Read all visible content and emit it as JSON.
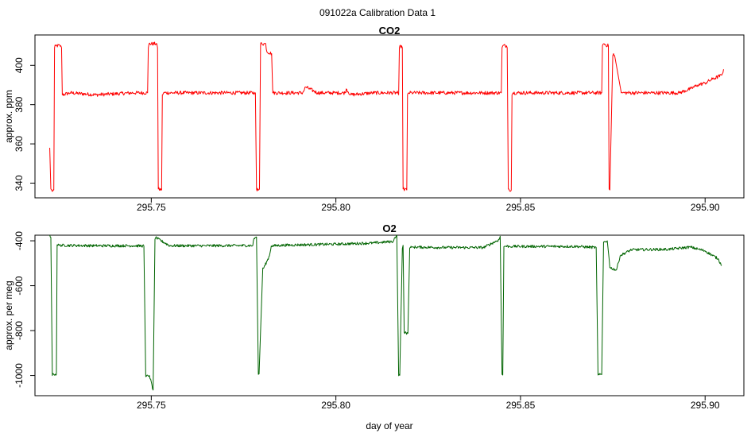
{
  "figure": {
    "title": "091022a   Calibration Data 1"
  },
  "chart_data": [
    {
      "type": "line",
      "title": "CO2",
      "xlabel": "",
      "ylabel": "approx. ppm",
      "xlim": [
        295.7185,
        295.9105
      ],
      "ylim": [
        332.5,
        415.5
      ],
      "xticks": [
        295.75,
        295.8,
        295.85,
        295.9
      ],
      "xtick_labels": [
        "295.75",
        "295.80",
        "295.85",
        "295.90"
      ],
      "yticks": [
        340,
        360,
        380,
        400
      ],
      "ytick_labels": [
        "340",
        "360",
        "380",
        "400"
      ],
      "grid": false,
      "series": [
        {
          "color": "#ff0000",
          "noise": 0.9,
          "x": [
            295.7225,
            295.7228,
            295.7231,
            295.7236,
            295.7238,
            295.7241,
            295.7255,
            295.7257,
            295.7259,
            295.728,
            295.735,
            295.745,
            295.749,
            295.7492,
            295.7494,
            295.7515,
            295.7517,
            295.7519,
            295.7528,
            295.753,
            295.7533,
            295.76,
            295.77,
            295.778,
            295.7782,
            295.7785,
            295.7791,
            295.7793,
            295.7796,
            295.781,
            295.7813,
            295.7826,
            295.7829,
            295.785,
            295.791,
            295.7918,
            295.795,
            295.8,
            295.8025,
            295.8028,
            295.804,
            295.81,
            295.8168,
            295.817,
            295.8172,
            295.8178,
            295.818,
            295.8182,
            295.8192,
            295.8194,
            295.8197,
            295.821,
            295.83,
            295.84,
            295.8448,
            295.845,
            295.8452,
            295.8462,
            295.8464,
            295.8467,
            295.8475,
            295.8477,
            295.848,
            295.855,
            295.865,
            295.872,
            295.8722,
            295.8725,
            295.8738,
            295.874,
            295.8742,
            295.875,
            295.8752,
            295.8755,
            295.8773,
            295.8776,
            295.885,
            295.893,
            295.896,
            295.898,
            295.9,
            295.902,
            295.9045,
            295.905
          ],
          "y": [
            358,
            337,
            336,
            336.5,
            409,
            410,
            410,
            409,
            385,
            386,
            385,
            386,
            386,
            409,
            411,
            411,
            409,
            337,
            336.5,
            385,
            386,
            386,
            386,
            386,
            386,
            337,
            336.5,
            337,
            411,
            411,
            407,
            406,
            386,
            386,
            386,
            389,
            386,
            386,
            386,
            388,
            385,
            386,
            386,
            385,
            409,
            410,
            409,
            337,
            336.5,
            385,
            386,
            386,
            386,
            386,
            386,
            409,
            410,
            410,
            409,
            337,
            336.5,
            385,
            386,
            386,
            386,
            386,
            410,
            411,
            410,
            337,
            336.5,
            405,
            406,
            405,
            386,
            386,
            386,
            386,
            388,
            390,
            391,
            393,
            395,
            398
          ]
        }
      ]
    },
    {
      "type": "line",
      "title": "O2",
      "xlabel": "day of year",
      "ylabel": "approx. per meg",
      "xlim": [
        295.7185,
        295.9105
      ],
      "ylim": [
        -1090,
        -375
      ],
      "xticks": [
        295.75,
        295.8,
        295.85,
        295.9
      ],
      "xtick_labels": [
        "295.75",
        "295.80",
        "295.85",
        "295.90"
      ],
      "yticks": [
        -1000,
        -800,
        -600,
        -400
      ],
      "ytick_labels": [
        "-1000",
        "-800",
        "-600",
        "-400"
      ],
      "grid": false,
      "series": [
        {
          "color": "#006400",
          "noise": 6,
          "x": [
            295.7225,
            295.7228,
            295.7232,
            295.7235,
            295.7243,
            295.7245,
            295.725,
            295.735,
            295.745,
            295.748,
            295.7485,
            295.7495,
            295.7505,
            295.751,
            295.7512,
            295.755,
            295.765,
            295.7775,
            295.7778,
            295.7785,
            295.779,
            295.7792,
            295.7802,
            295.7805,
            295.782,
            295.7825,
            295.785,
            295.79,
            295.8,
            295.81,
            295.8155,
            295.816,
            295.8165,
            295.817,
            295.8173,
            295.818,
            295.8182,
            295.8185,
            295.8195,
            295.82,
            295.8202,
            295.8205,
            295.821,
            295.83,
            295.84,
            295.8442,
            295.8445,
            295.845,
            295.8452,
            295.8455,
            295.8458,
            295.847,
            295.848,
            295.855,
            295.865,
            295.8705,
            295.871,
            295.872,
            295.8725,
            295.8735,
            295.874,
            295.8742,
            295.876,
            295.877,
            295.88,
            295.89,
            295.896,
            295.9,
            295.9035,
            295.9045
          ],
          "y": [
            -375,
            -385,
            -1000,
            -993,
            -995,
            -418,
            -420,
            -422,
            -422,
            -423,
            -1005,
            -1000,
            -1065,
            -393,
            -386,
            -422,
            -422,
            -421,
            -390,
            -383,
            -995,
            -993,
            -521,
            -520,
            -467,
            -423,
            -420,
            -418,
            -415,
            -410,
            -403,
            -385,
            -375,
            -1001,
            -999,
            -435,
            -420,
            -808,
            -812,
            -432,
            -430,
            -429,
            -428,
            -430,
            -430,
            -395,
            -380,
            -995,
            -998,
            -426,
            -424,
            -425,
            -425,
            -425,
            -425,
            -430,
            -998,
            -996,
            -405,
            -400,
            -480,
            -520,
            -530,
            -466,
            -440,
            -438,
            -428,
            -445,
            -480,
            -510
          ]
        }
      ]
    }
  ]
}
